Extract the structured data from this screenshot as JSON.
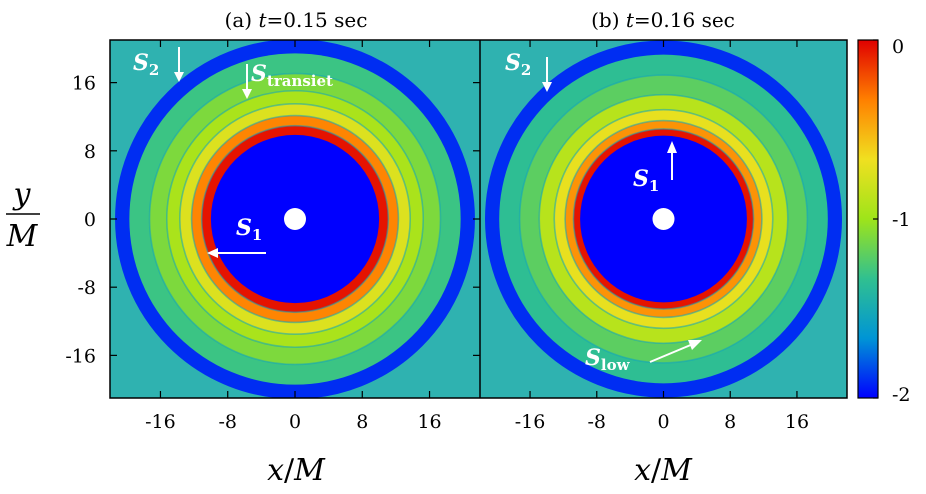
{
  "chart_data": [
    {
      "type": "heatmap",
      "panel": "a",
      "title": "(a) t=0.15 sec",
      "title_prefix": "(a) ",
      "title_var": "t",
      "title_suffix": "=0.15 sec",
      "xlabel": "x/M",
      "ylabel": "y/M",
      "xlim": [
        -22,
        22
      ],
      "ylim": [
        -21,
        21
      ],
      "xticks": [
        -16,
        -8,
        0,
        8,
        16
      ],
      "yticks": [
        16,
        8,
        0,
        -8,
        -16
      ],
      "inner_hole_radius": 10,
      "rings": [
        {
          "r": 10.6,
          "value": -0.05,
          "label": "S1"
        },
        {
          "r": 11.6,
          "value": -0.35
        },
        {
          "r": 13.0,
          "value": -0.75
        },
        {
          "r": 14.4,
          "value": -0.95,
          "label": "Stransiet"
        },
        {
          "r": 16.1,
          "value": -1.1
        },
        {
          "r": 18.5,
          "value": -1.3,
          "label": "S2"
        }
      ],
      "annotations": [
        {
          "main": "S",
          "sub": "2",
          "desc": "arrow down"
        },
        {
          "main": "S",
          "sub": "transiet",
          "desc": "arrow down"
        },
        {
          "main": "S",
          "sub": "1",
          "desc": "arrow left"
        }
      ]
    },
    {
      "type": "heatmap",
      "panel": "b",
      "title": "(b) t=0.16 sec",
      "title_prefix": "(b) ",
      "title_var": "t",
      "title_suffix": "=0.16 sec",
      "xlabel": "x/M",
      "ylabel": "",
      "xlim": [
        -22,
        22
      ],
      "ylim": [
        -21,
        21
      ],
      "xticks": [
        -16,
        -8,
        0,
        8,
        16
      ],
      "yticks": [],
      "inner_hole_radius": 10,
      "rings": [
        {
          "r": 10.4,
          "value": -0.05,
          "label": "S1"
        },
        {
          "r": 11.2,
          "value": -0.4
        },
        {
          "r": 12.4,
          "value": -0.7
        },
        {
          "r": 13.8,
          "value": -0.9,
          "label": "Slow"
        },
        {
          "r": 16.0,
          "value": -1.2
        },
        {
          "r": 18.5,
          "value": -1.35,
          "label": "S2"
        }
      ],
      "annotations": [
        {
          "main": "S",
          "sub": "2",
          "desc": "arrow down"
        },
        {
          "main": "S",
          "sub": "1",
          "desc": "arrow up"
        },
        {
          "main": "S",
          "sub": "low",
          "desc": "arrow up-right"
        }
      ]
    }
  ],
  "colorbar": {
    "range": [
      -2,
      0
    ],
    "ticks": [
      {
        "value": 0,
        "label": "0"
      },
      {
        "value": -1,
        "label": "-1"
      },
      {
        "value": -2,
        "label": "-2"
      }
    ],
    "colors": [
      "#0000ff",
      "#0095d5",
      "#30c090",
      "#9ee41a",
      "#f0e020",
      "#ff8000",
      "#e00000"
    ]
  },
  "labels": {
    "xlabel_main": "x",
    "xlabel_unit": "M",
    "ylabel_num": "y",
    "ylabel_den": "M"
  }
}
